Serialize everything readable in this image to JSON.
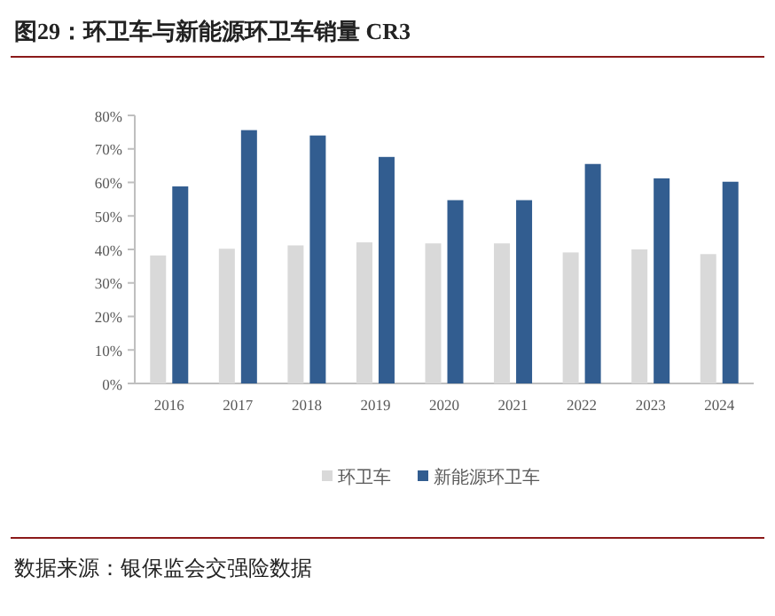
{
  "chart_data": {
    "type": "bar",
    "title": "图29：环卫车与新能源环卫车销量 CR3",
    "annotations": [
      "数据来源：银保监会交强险数据"
    ],
    "categories": [
      "2016",
      "2017",
      "2018",
      "2019",
      "2020",
      "2021",
      "2022",
      "2023",
      "2024"
    ],
    "series": [
      {
        "name": "环卫车",
        "color": "#d9d9d9",
        "values": [
          38.2,
          40.2,
          41.2,
          42.1,
          41.8,
          41.8,
          39.1,
          40.0,
          38.6
        ]
      },
      {
        "name": "新能源环卫车",
        "color": "#325d90",
        "values": [
          58.8,
          75.6,
          74.0,
          67.6,
          54.7,
          54.7,
          65.5,
          61.2,
          60.2
        ]
      }
    ],
    "ylim": [
      0,
      80
    ],
    "yticks": [
      {
        "value": 0,
        "label": "0%"
      },
      {
        "value": 10,
        "label": "10%"
      },
      {
        "value": 20,
        "label": "20%"
      },
      {
        "value": 30,
        "label": "30%"
      },
      {
        "value": 40,
        "label": "40%"
      },
      {
        "value": 50,
        "label": "50%"
      },
      {
        "value": 60,
        "label": "60%"
      },
      {
        "value": 70,
        "label": "70%"
      },
      {
        "value": 80,
        "label": "80%"
      }
    ],
    "grid": false,
    "legend": "bottom"
  }
}
